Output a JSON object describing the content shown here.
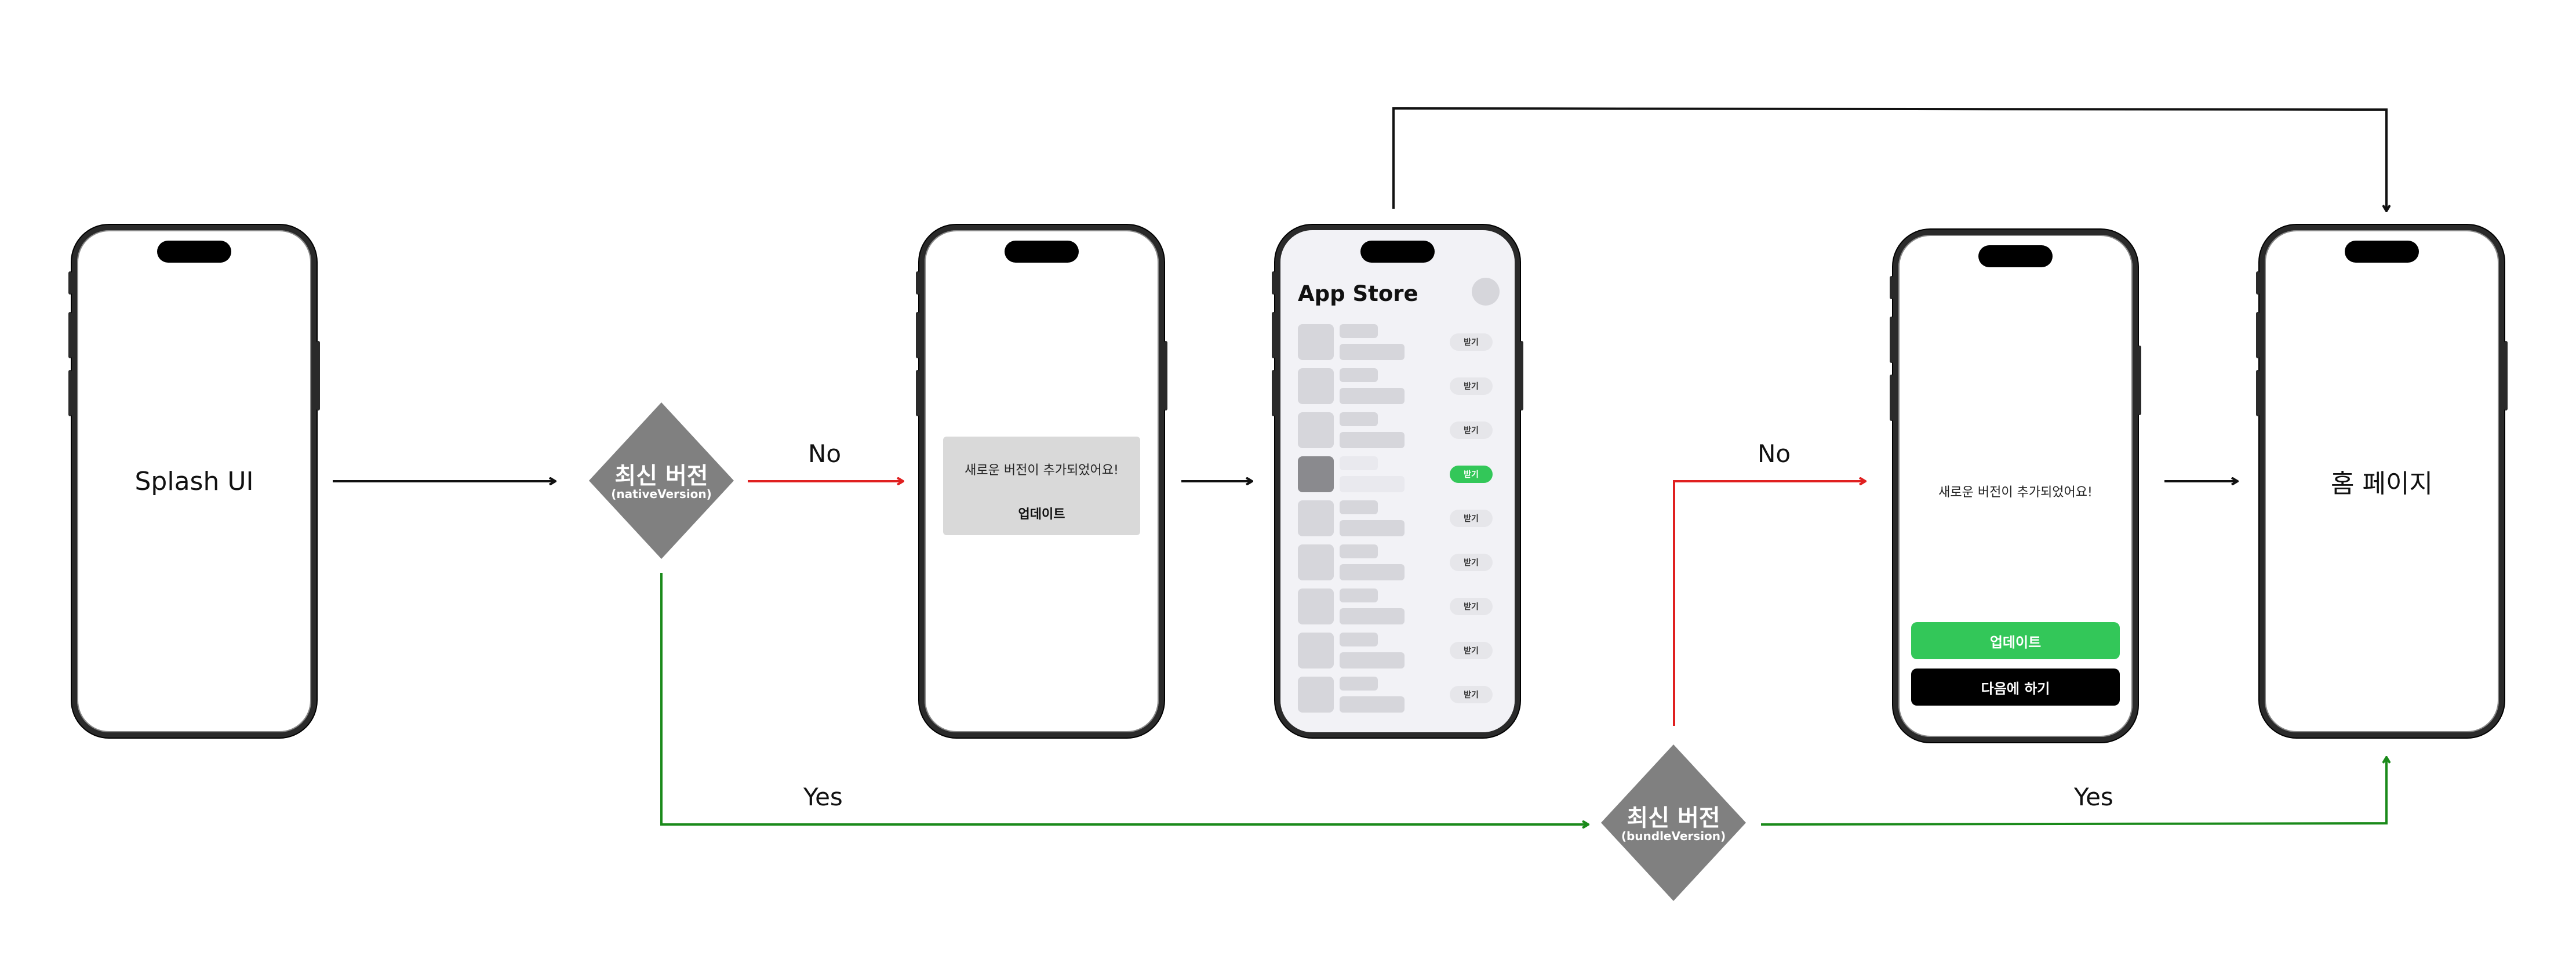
{
  "colors": {
    "no_path": "#e02020",
    "yes_path": "#1a8a1a",
    "neutral": "#111111",
    "diamond": "#808080",
    "accent_green": "#33c759"
  },
  "screens": {
    "splash": {
      "label": "Splash UI"
    },
    "native_update": {
      "message": "새로운 버전이 추가되었어요!",
      "button": "업데이트"
    },
    "app_store": {
      "title": "App Store",
      "get_labels": [
        "받기",
        "받기",
        "받기",
        "받기",
        "받기",
        "받기",
        "받기",
        "받기",
        "받기"
      ],
      "highlighted_row": 3
    },
    "bundle_update": {
      "message": "새로운 버전이 추가되었어요!",
      "update_button": "업데이트",
      "later_button": "다음에 하기"
    },
    "home": {
      "label": "홈 페이지"
    }
  },
  "decisions": {
    "native": {
      "title": "최신 버전",
      "subtitle": "(nativeVersion)"
    },
    "bundle": {
      "title": "최신 버전",
      "subtitle": "(bundleVersion)"
    }
  },
  "edge_labels": {
    "native_no": "No",
    "native_yes": "Yes",
    "bundle_no": "No",
    "bundle_yes": "Yes"
  }
}
